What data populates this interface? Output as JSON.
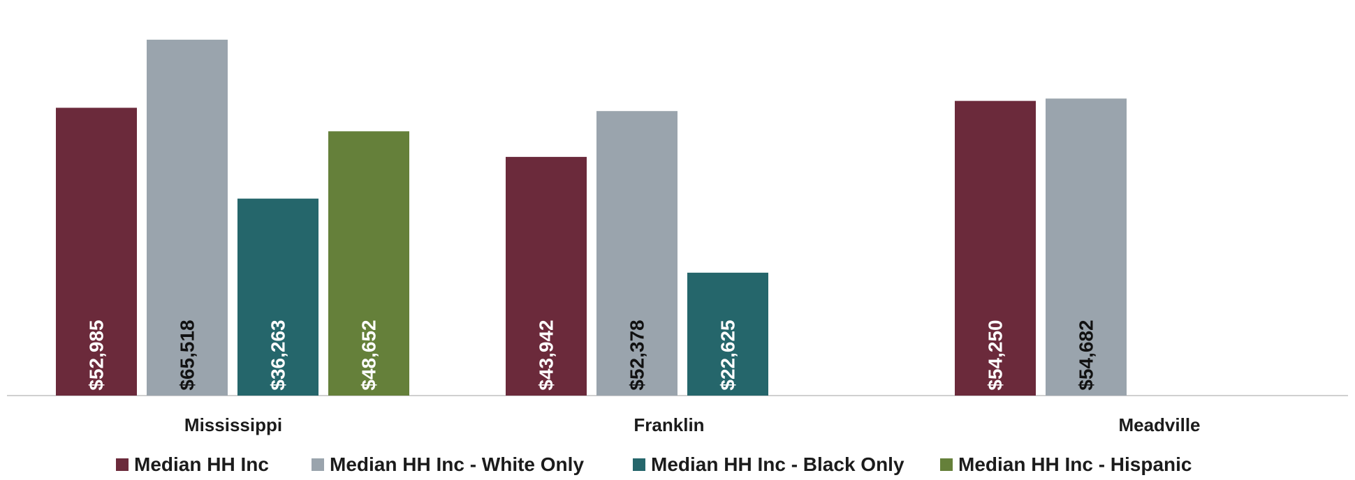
{
  "chart_data": {
    "type": "bar",
    "categories": [
      "Mississippi",
      "Franklin",
      "Meadville"
    ],
    "ylim": [
      0,
      70000
    ],
    "grid": false,
    "legend_position": "bottom",
    "series": [
      {
        "name": "Median HH Inc",
        "color": "#6b2a3b",
        "label_color": "#ffffff",
        "values": [
          52985,
          43942,
          54250
        ],
        "labels": [
          "$52,985",
          "$43,942",
          "$54,250"
        ]
      },
      {
        "name": "Median HH Inc - White Only",
        "color": "#9aa4ad",
        "label_color": "#111111",
        "values": [
          65518,
          52378,
          54682
        ],
        "labels": [
          "$65,518",
          "$52,378",
          "$54,682"
        ]
      },
      {
        "name": "Median HH Inc - Black Only",
        "color": "#25666b",
        "label_color": "#ffffff",
        "values": [
          36263,
          22625,
          null
        ],
        "labels": [
          "$36,263",
          "$22,625",
          null
        ]
      },
      {
        "name": "Median HH Inc - Hispanic",
        "color": "#65803a",
        "label_color": "#ffffff",
        "values": [
          48652,
          null,
          null
        ],
        "labels": [
          "$48,652",
          null,
          null
        ]
      }
    ]
  }
}
